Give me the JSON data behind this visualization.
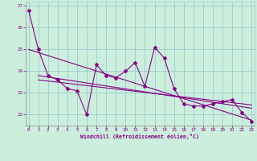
{
  "x": [
    0,
    1,
    2,
    3,
    4,
    5,
    6,
    7,
    8,
    9,
    10,
    11,
    12,
    13,
    14,
    15,
    16,
    17,
    18,
    19,
    20,
    21,
    22,
    23
  ],
  "y_main": [
    26.8,
    25.0,
    23.8,
    23.6,
    23.2,
    23.1,
    22.0,
    24.3,
    23.8,
    23.7,
    24.0,
    24.4,
    23.3,
    25.1,
    24.6,
    23.2,
    22.5,
    22.4,
    22.4,
    22.5,
    22.6,
    22.7,
    22.1,
    21.7
  ],
  "trend1_x": [
    0,
    23
  ],
  "trend1_y": [
    25.0,
    21.75
  ],
  "trend2_x": [
    1,
    23
  ],
  "trend2_y": [
    23.8,
    22.3
  ],
  "trend3_x": [
    1,
    23
  ],
  "trend3_y": [
    23.6,
    22.45
  ],
  "xlim": [
    -0.3,
    23.3
  ],
  "ylim": [
    21.5,
    27.2
  ],
  "yticks": [
    22,
    23,
    24,
    25,
    26,
    27
  ],
  "xticks": [
    0,
    1,
    2,
    3,
    4,
    5,
    6,
    7,
    8,
    9,
    10,
    11,
    12,
    13,
    14,
    15,
    16,
    17,
    18,
    19,
    20,
    21,
    22,
    23
  ],
  "xlabel": "Windchill (Refroidissement éolien,°C)",
  "line_color": "#880088",
  "bg_color": "#cceedd",
  "grid_color": "#99cccc",
  "tick_color": "#880088",
  "label_color": "#880088"
}
